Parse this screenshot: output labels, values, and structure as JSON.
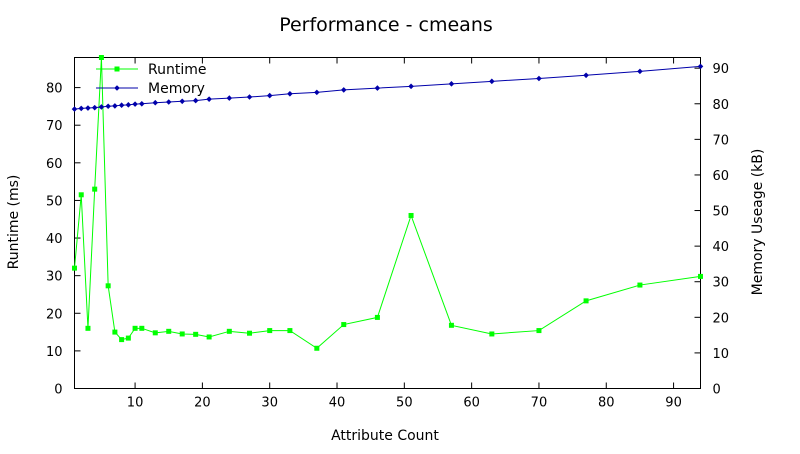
{
  "chart_data": {
    "type": "line",
    "title": "Performance - cmeans",
    "xlabel": "Attribute Count",
    "ylabel_left": "Runtime (ms)",
    "ylabel_right": "Memory Useage (kB)",
    "xlim": [
      1,
      94
    ],
    "ylim_left": [
      0,
      88
    ],
    "ylim_right": [
      0,
      93
    ],
    "x_ticks": [
      10,
      20,
      30,
      40,
      50,
      60,
      70,
      80,
      90
    ],
    "y_ticks_left": [
      0,
      10,
      20,
      30,
      40,
      50,
      60,
      70,
      80
    ],
    "y_ticks_right": [
      0,
      10,
      20,
      30,
      40,
      50,
      60,
      70,
      80,
      90
    ],
    "grid": false,
    "legend_position": "top-left",
    "series": [
      {
        "name": "Runtime",
        "axis": "left",
        "color": "#00ff00",
        "marker": "square",
        "x": [
          1,
          2,
          3,
          4,
          5,
          6,
          7,
          8,
          9,
          10,
          11,
          13,
          15,
          17,
          19,
          21,
          24,
          27,
          30,
          33,
          37,
          41,
          46,
          51,
          57,
          63,
          70,
          77,
          85,
          94
        ],
        "y": [
          32,
          51.5,
          16,
          53,
          88,
          27.3,
          15,
          13,
          13.4,
          16,
          16,
          14.8,
          15.2,
          14.5,
          14.4,
          13.7,
          15.2,
          14.7,
          15.4,
          15.4,
          10.7,
          17,
          18.9,
          46,
          16.8,
          14.5,
          15.4,
          23.3,
          27.5,
          29.8
        ]
      },
      {
        "name": "Memory",
        "axis": "right",
        "color": "#0000aa",
        "marker": "diamond",
        "x": [
          1,
          2,
          3,
          4,
          5,
          6,
          7,
          8,
          9,
          10,
          11,
          13,
          15,
          17,
          19,
          21,
          24,
          27,
          30,
          33,
          37,
          41,
          46,
          51,
          57,
          63,
          70,
          77,
          85,
          94
        ],
        "y": [
          78.5,
          78.7,
          78.8,
          78.9,
          79.1,
          79.3,
          79.4,
          79.6,
          79.7,
          79.9,
          80.0,
          80.3,
          80.5,
          80.7,
          80.9,
          81.3,
          81.6,
          81.9,
          82.3,
          82.8,
          83.2,
          83.9,
          84.4,
          84.9,
          85.6,
          86.3,
          87.1,
          88.0,
          89.1,
          90.5
        ]
      }
    ]
  }
}
